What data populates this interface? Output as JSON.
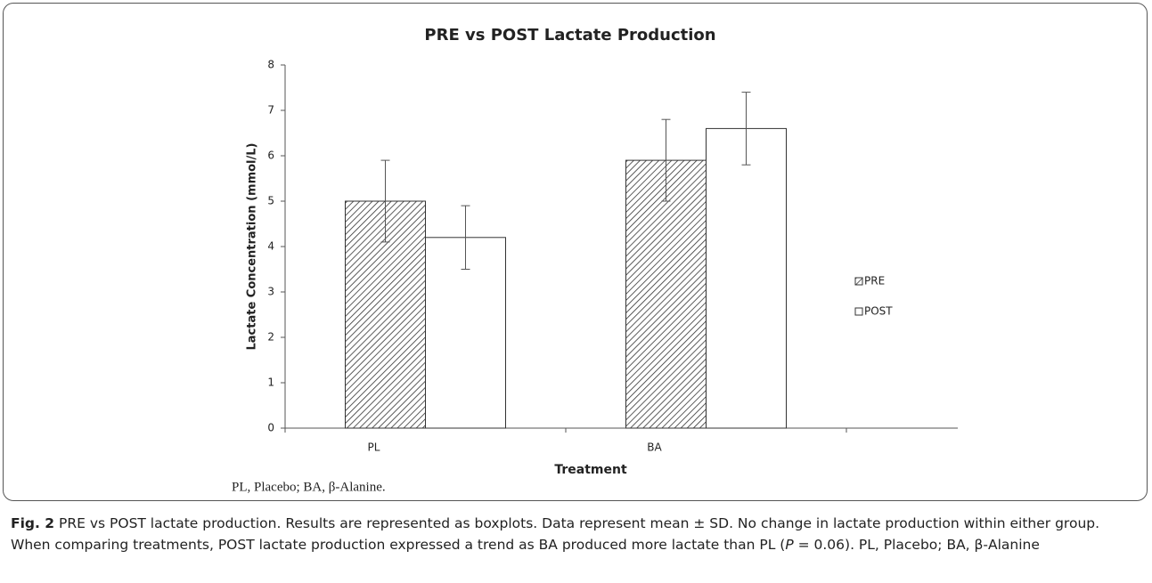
{
  "chart_data": {
    "type": "bar",
    "title": "PRE vs POST Lactate Production",
    "x_label": "Treatment",
    "y_label": "Lactate Concentration (mmol/L)",
    "categories": [
      "PL",
      "BA"
    ],
    "series": [
      {
        "name": "PRE",
        "color": "#333333",
        "pattern": "hatch",
        "values": [
          5.0,
          5.9
        ],
        "errors": [
          0.9,
          0.9
        ]
      },
      {
        "name": "POST",
        "color": "#ffffff",
        "pattern": "solid",
        "values": [
          4.2,
          6.6
        ],
        "errors": [
          0.7,
          0.8
        ]
      }
    ],
    "ylim": [
      0,
      8
    ],
    "yticks": [
      0,
      1,
      2,
      3,
      4,
      5,
      6,
      7,
      8
    ],
    "grid": false,
    "legend": "right",
    "annotation": "PL, Placebo; BA, β-Alanine."
  },
  "caption": {
    "label": "Fig. 2",
    "text_before": " PRE vs POST lactate production. Results are represented as boxplots. Data represent mean ± SD. No change in lactate production within either group. When comparing treatments, POST lactate production expressed a trend as BA produced more lactate than PL (",
    "italic": "P",
    "text_after": " = 0.06). PL, Placebo; BA, β-Alanine"
  }
}
